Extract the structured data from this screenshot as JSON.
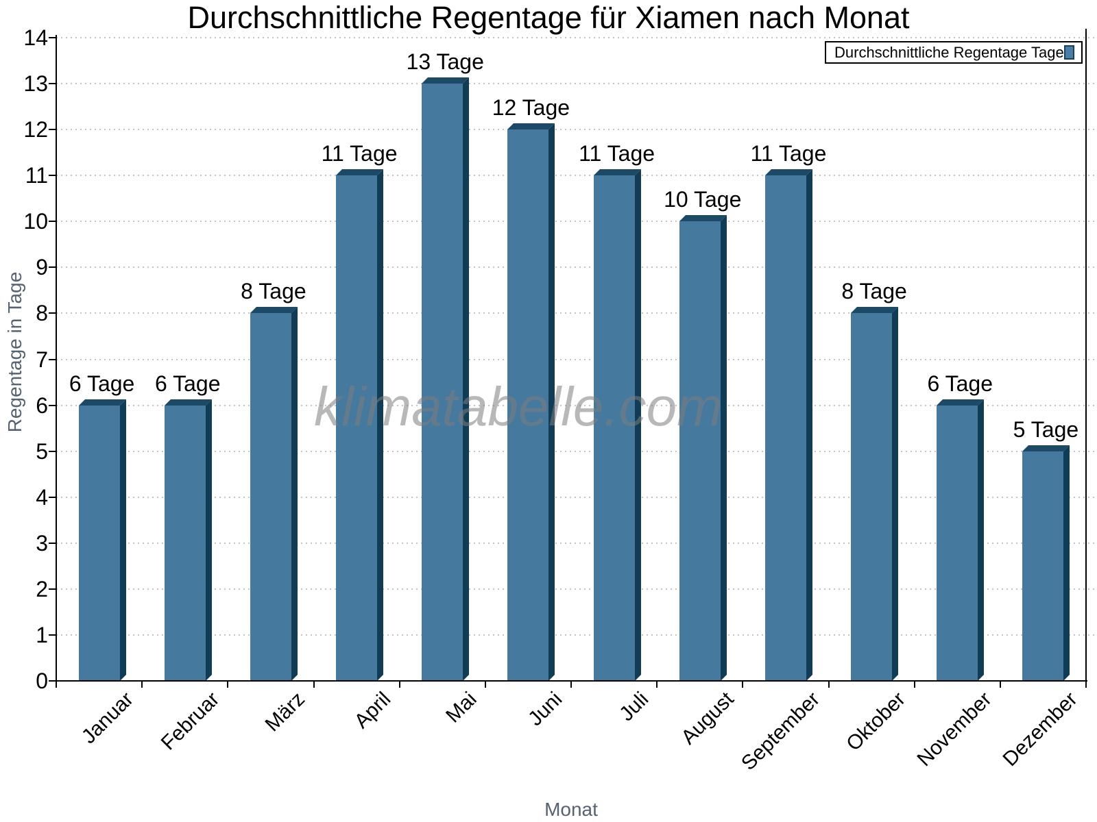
{
  "header": {
    "title": "Durchschnittliche Regentage für Xiamen nach Monat"
  },
  "watermark": {
    "text": "klimatabelle.com"
  },
  "legend": {
    "label": "Durchschnittliche Regentage Tage",
    "swatch_color": "#4a7ea6",
    "swatch_border_color": "#16425d"
  },
  "chart_data": {
    "type": "bar",
    "title": "Durchschnittliche Regentage für Xiamen nach Monat",
    "categories": [
      "Januar",
      "Februar",
      "März",
      "April",
      "Mai",
      "Juni",
      "Juli",
      "August",
      "September",
      "Oktober",
      "November",
      "Dezember"
    ],
    "values": [
      6,
      6,
      8,
      11,
      13,
      12,
      11,
      10,
      11,
      8,
      6,
      5
    ],
    "data_labels": [
      "6 Tage",
      "6 Tage",
      "8 Tage",
      "11 Tage",
      "13 Tage",
      "12 Tage",
      "11 Tage",
      "10 Tage",
      "11 Tage",
      "8 Tage",
      "6 Tage",
      "5 Tage"
    ],
    "label_suffix": " Tage",
    "xlabel": "Monat",
    "ylabel": "Regentage in Tage",
    "ylim": [
      0,
      14
    ],
    "ytick_step": 1,
    "grid": "horizontal-dotted",
    "legend_entries": [
      "Durchschnittliche Regentage Tage"
    ],
    "legend_position": "top-right",
    "colors": {
      "bar_front": "#45799e",
      "bar_side": "#113c55",
      "bar_top": "#1c4a66",
      "axis": "#000000",
      "gridline": "#c3c3c3",
      "axis_title": "#566372",
      "watermark": "#7d7d7d"
    }
  }
}
